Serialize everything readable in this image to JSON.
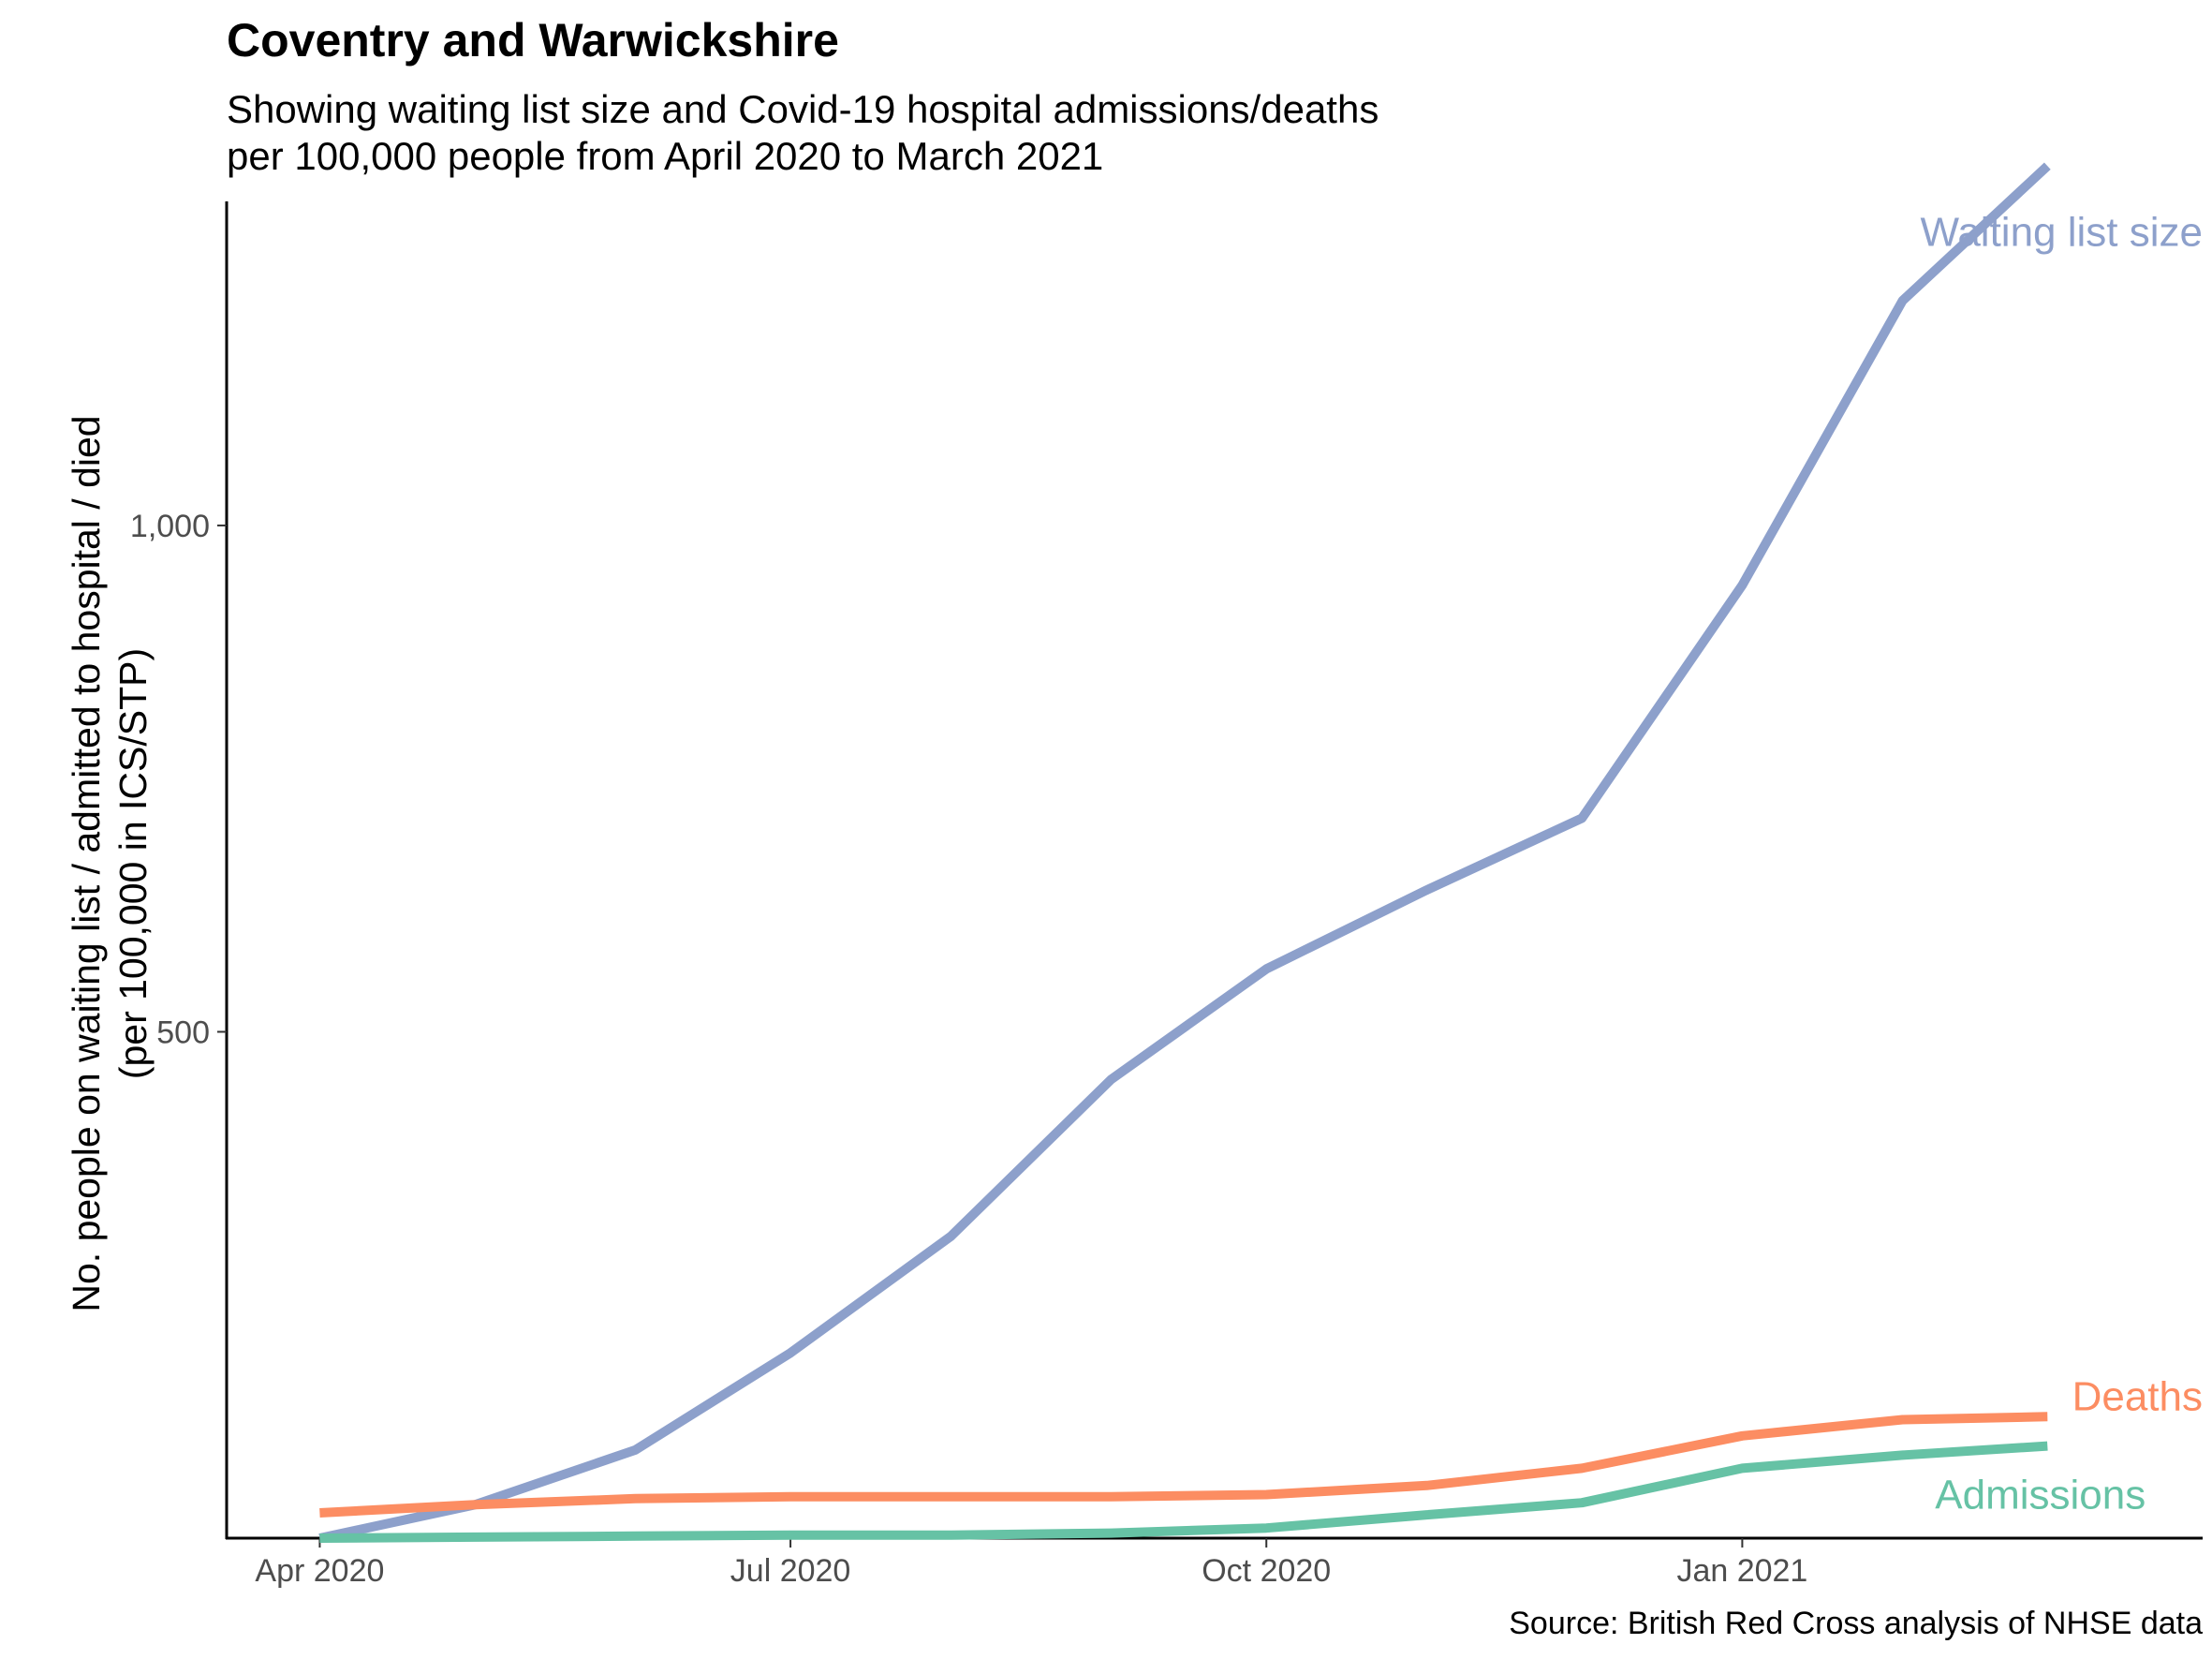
{
  "chart_data": {
    "type": "line",
    "title": "Coventry and Warwickshire",
    "subtitle_lines": [
      "Showing waiting list size and Covid-19 hospital admissions/deaths",
      "per 100,000 people from April 2020 to March 2021"
    ],
    "ylabel_lines": [
      "No. people on waiting list / admitted to hospital / died",
      "(per 100,000 in ICS/STP)"
    ],
    "xlabel": "",
    "caption": "Source: British Red Cross analysis of NHSE data",
    "x_ticks": [
      {
        "date": "2020-04-01",
        "label": "Apr 2020"
      },
      {
        "date": "2020-07-01",
        "label": "Jul 2020"
      },
      {
        "date": "2020-10-01",
        "label": "Oct 2020"
      },
      {
        "date": "2021-01-01",
        "label": "Jan 2021"
      }
    ],
    "y_ticks": [
      {
        "value": 500,
        "label": "500"
      },
      {
        "value": 1000,
        "label": "1,000"
      }
    ],
    "xlim": [
      "2020-03-14",
      "2021-03-31"
    ],
    "ylim": [
      0,
      1320
    ],
    "grid": false,
    "legend": "none",
    "x": [
      "2020-04-01",
      "2020-05-01",
      "2020-06-01",
      "2020-07-01",
      "2020-08-01",
      "2020-09-01",
      "2020-10-01",
      "2020-11-01",
      "2020-12-01",
      "2021-01-01",
      "2021-02-01",
      "2021-03-01"
    ],
    "series": [
      {
        "name": "Waiting list size",
        "color": "#8DA0CB",
        "values": [
          0,
          33,
          87,
          183,
          298,
          453,
          562,
          640,
          711,
          941,
          1222,
          1355
        ],
        "label_anchor": "end",
        "label_date": "2021-03-31",
        "label_value": 1290
      },
      {
        "name": "Deaths",
        "color": "#FC8D62",
        "values": [
          25,
          33,
          39,
          41,
          41,
          41,
          43,
          52,
          69,
          101,
          117,
          120
        ],
        "label_anchor": "end",
        "label_date": "2021-03-31",
        "label_value": 140
      },
      {
        "name": "Admissions",
        "color": "#66C2A5",
        "values": [
          0,
          1,
          2,
          3,
          3,
          5,
          10,
          23,
          35,
          69,
          82,
          91
        ],
        "label_anchor": "end",
        "label_date": "2021-03-20",
        "label_value": 43
      }
    ]
  }
}
